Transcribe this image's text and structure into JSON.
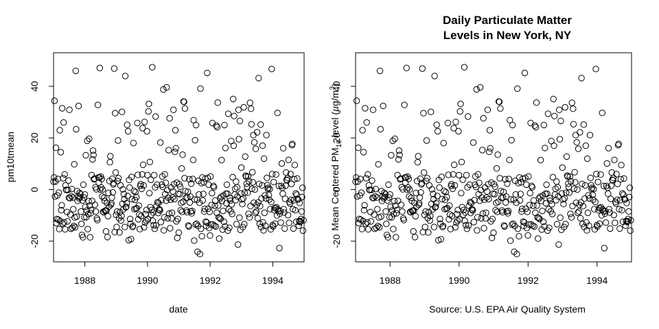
{
  "chart_data": [
    {
      "type": "scatter",
      "title": "",
      "xlabel": "date",
      "ylabel": "pm10tmean",
      "xlim": [
        1987.0,
        1995.0
      ],
      "ylim": [
        -28,
        53
      ],
      "xticks": [
        1988,
        1990,
        1992,
        1994
      ],
      "yticks": [
        -20,
        0,
        20,
        40
      ],
      "x": [],
      "y": []
    },
    {
      "type": "scatter",
      "title_line1": "Daily Particulate Matter",
      "title_line2": "Levels in New York, NY",
      "xlabel": "Source: U.S. EPA Air Quality System",
      "ylabel_prefix": "Mean Centered PM",
      "ylabel_sub": "10",
      "ylabel_mid": " level (",
      "ylabel_mu": "µ",
      "ylabel_unit": "g/m",
      "ylabel_sup": "3",
      "ylabel_suffix": ")",
      "xlim": [
        1987.0,
        1995.0
      ],
      "ylim": [
        -28,
        53
      ],
      "xticks": [
        1988,
        1990,
        1992,
        1994
      ],
      "yticks": [
        -20,
        0,
        20,
        40
      ],
      "x": [],
      "y": []
    }
  ]
}
